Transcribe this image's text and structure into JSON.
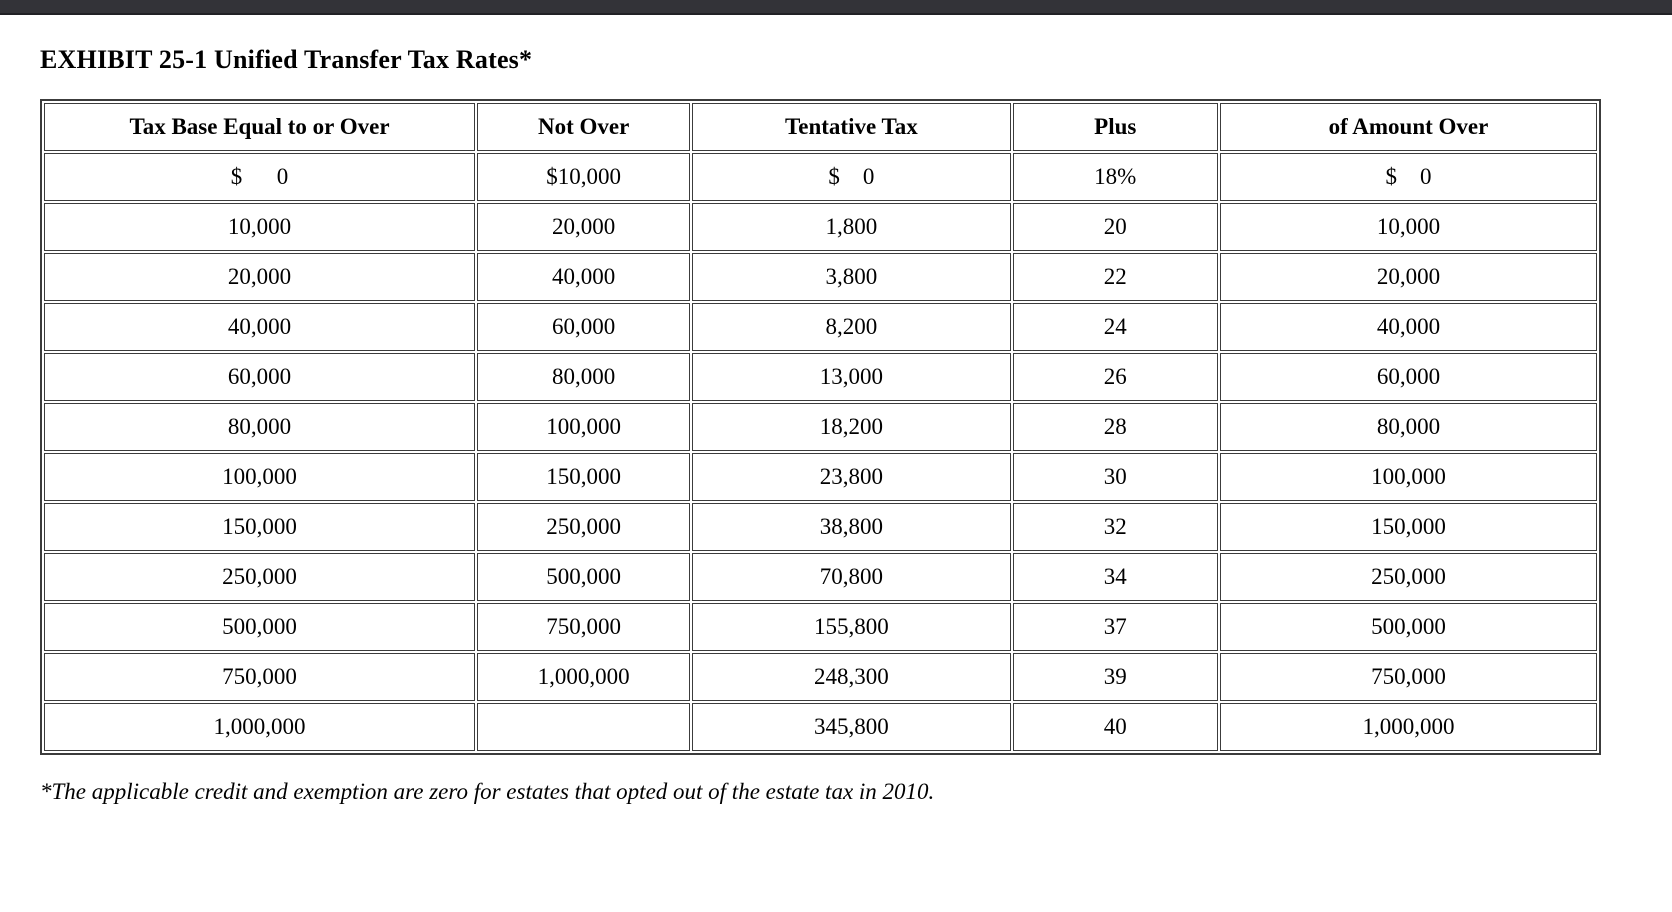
{
  "page": {
    "title": "EXHIBIT 25-1 Unified Transfer Tax Rates*",
    "footnote": "*The applicable credit and exemption are zero for estates that opted out of the estate tax in 2010."
  },
  "table": {
    "headers": [
      "Tax Base Equal to or Over",
      "Not Over",
      "Tentative Tax",
      "Plus",
      "of Amount Over"
    ],
    "rows": [
      [
        "$      0",
        "$10,000",
        "$    0",
        "18%",
        "$    0"
      ],
      [
        "10,000",
        "20,000",
        "1,800",
        "20",
        "10,000"
      ],
      [
        "20,000",
        "40,000",
        "3,800",
        "22",
        "20,000"
      ],
      [
        "40,000",
        "60,000",
        "8,200",
        "24",
        "40,000"
      ],
      [
        "60,000",
        "80,000",
        "13,000",
        "26",
        "60,000"
      ],
      [
        "80,000",
        "100,000",
        "18,200",
        "28",
        "80,000"
      ],
      [
        "100,000",
        "150,000",
        "23,800",
        "30",
        "100,000"
      ],
      [
        "150,000",
        "250,000",
        "38,800",
        "32",
        "150,000"
      ],
      [
        "250,000",
        "500,000",
        "70,800",
        "34",
        "250,000"
      ],
      [
        "500,000",
        "750,000",
        "155,800",
        "37",
        "500,000"
      ],
      [
        "750,000",
        "1,000,000",
        "248,300",
        "39",
        "750,000"
      ],
      [
        "1,000,000",
        "",
        "345,800",
        "40",
        "1,000,000"
      ]
    ]
  }
}
